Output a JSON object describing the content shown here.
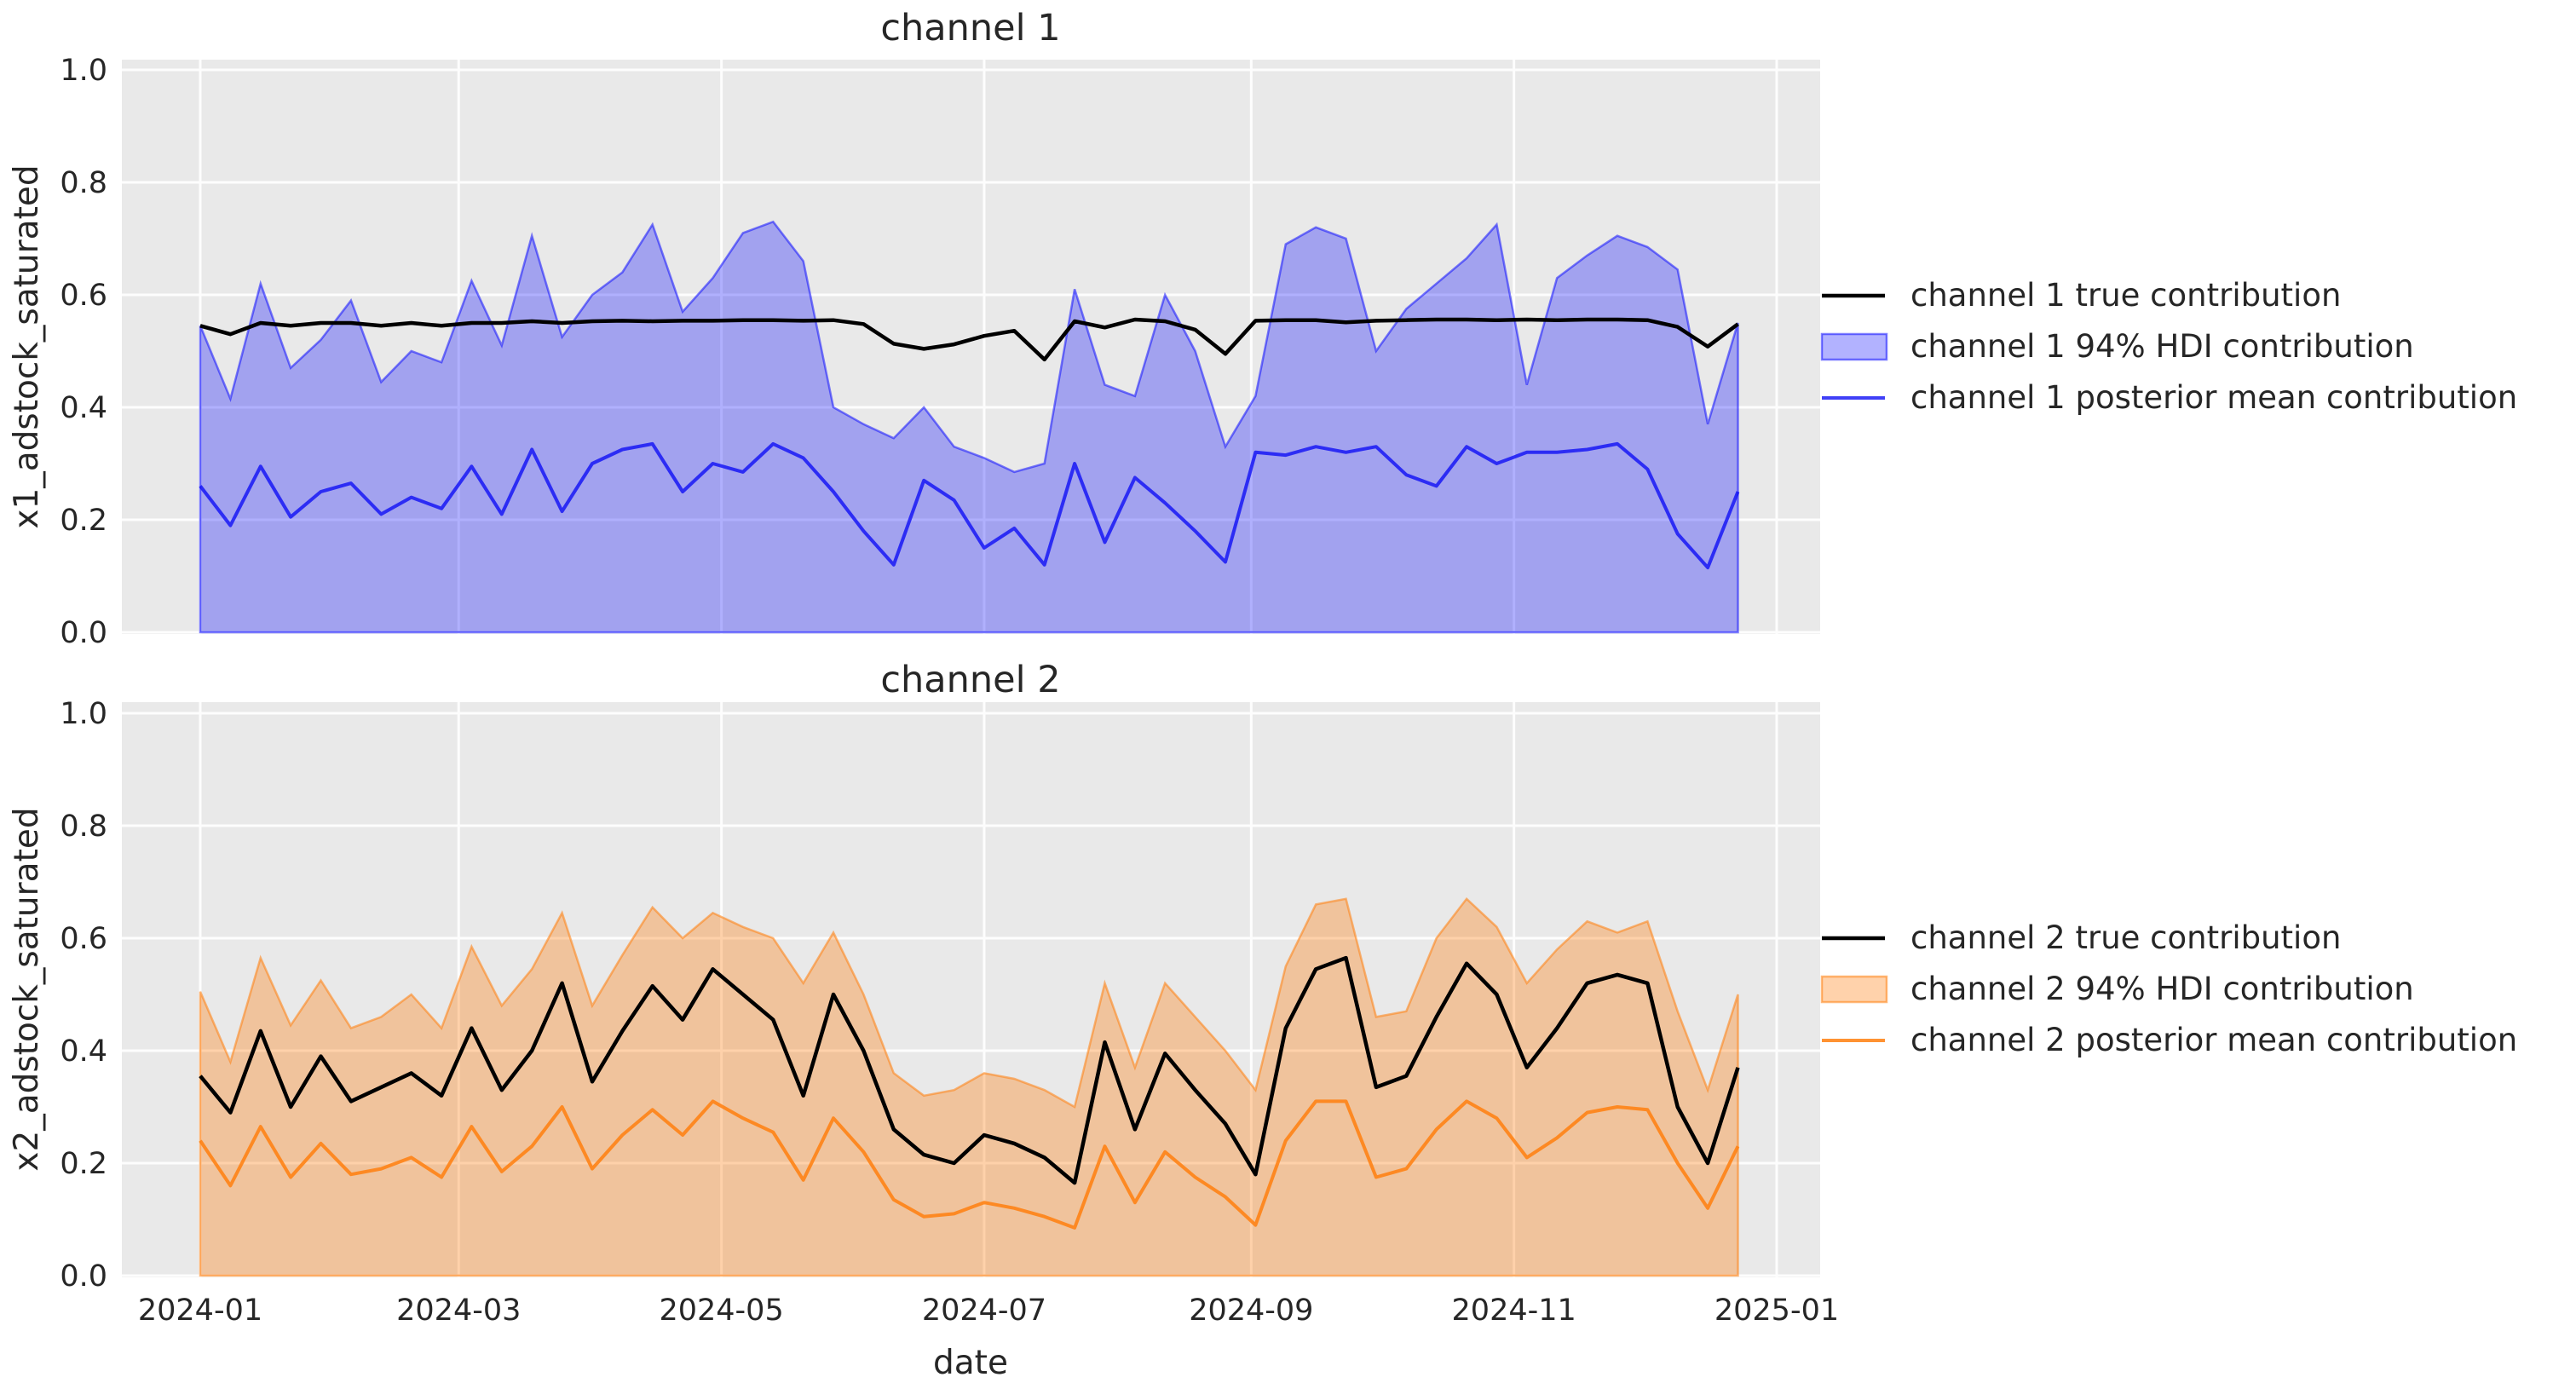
{
  "figure": {
    "xlabel": "date",
    "y_tick_labels": [
      "0.0",
      "0.2",
      "0.4",
      "0.6",
      "0.8",
      "1.0"
    ],
    "x_tick_labels": [
      "2024-01",
      "2024-03",
      "2024-05",
      "2024-07",
      "2024-09",
      "2024-11",
      "2025-01"
    ],
    "background_color": "#ffffff",
    "plot_background_color": "#e9e9e9",
    "grid_color": "#fdfdfd",
    "text_color": "#262626",
    "true_line_color": "#000000",
    "channel1_color": "#0000ff",
    "channel2_color": "#ff7f0e"
  },
  "chart_data": [
    {
      "type": "line",
      "title": "channel 1",
      "ylabel": "x1_adstock_saturated",
      "xlabel": "",
      "ylim": [
        0.0,
        1.0
      ],
      "grid": true,
      "legend_position": "outside-right",
      "x_dates": [
        "2024-01-01",
        "2024-01-08",
        "2024-01-15",
        "2024-01-22",
        "2024-01-29",
        "2024-02-05",
        "2024-02-12",
        "2024-02-19",
        "2024-02-26",
        "2024-03-04",
        "2024-03-11",
        "2024-03-18",
        "2024-03-25",
        "2024-04-01",
        "2024-04-08",
        "2024-04-15",
        "2024-04-22",
        "2024-04-29",
        "2024-05-06",
        "2024-05-13",
        "2024-05-20",
        "2024-05-27",
        "2024-06-03",
        "2024-06-10",
        "2024-06-17",
        "2024-06-24",
        "2024-07-01",
        "2024-07-08",
        "2024-07-15",
        "2024-07-22",
        "2024-07-29",
        "2024-08-05",
        "2024-08-12",
        "2024-08-19",
        "2024-08-26",
        "2024-09-02",
        "2024-09-09",
        "2024-09-16",
        "2024-09-23",
        "2024-09-30",
        "2024-10-07",
        "2024-10-14",
        "2024-10-21",
        "2024-10-28",
        "2024-11-04",
        "2024-11-11",
        "2024-11-18",
        "2024-11-25",
        "2024-12-02",
        "2024-12-09",
        "2024-12-16",
        "2024-12-23"
      ],
      "series": [
        {
          "name": "channel 1 true contribution",
          "kind": "line",
          "color": "#000000",
          "values": [
            0.545,
            0.53,
            0.55,
            0.545,
            0.55,
            0.55,
            0.545,
            0.55,
            0.545,
            0.55,
            0.55,
            0.553,
            0.55,
            0.553,
            0.554,
            0.553,
            0.554,
            0.554,
            0.555,
            0.555,
            0.554,
            0.555,
            0.548,
            0.513,
            0.504,
            0.512,
            0.527,
            0.536,
            0.485,
            0.553,
            0.542,
            0.556,
            0.553,
            0.538,
            0.495,
            0.554,
            0.555,
            0.555,
            0.551,
            0.554,
            0.555,
            0.556,
            0.556,
            0.555,
            0.556,
            0.555,
            0.556,
            0.556,
            0.555,
            0.543,
            0.508,
            0.548
          ]
        },
        {
          "name": "channel 1 94% HDI contribution",
          "kind": "band",
          "color": "#0000ff",
          "hdi_lower": 0.0,
          "hdi_upper": [
            0.545,
            0.415,
            0.62,
            0.47,
            0.52,
            0.59,
            0.445,
            0.5,
            0.48,
            0.625,
            0.51,
            0.705,
            0.525,
            0.6,
            0.64,
            0.725,
            0.57,
            0.63,
            0.71,
            0.73,
            0.66,
            0.4,
            0.37,
            0.345,
            0.4,
            0.33,
            0.31,
            0.285,
            0.3,
            0.61,
            0.44,
            0.42,
            0.6,
            0.5,
            0.33,
            0.42,
            0.69,
            0.72,
            0.7,
            0.5,
            0.575,
            0.62,
            0.665,
            0.725,
            0.44,
            0.63,
            0.67,
            0.705,
            0.685,
            0.645,
            0.37,
            0.55
          ]
        },
        {
          "name": "channel 1 posterior mean contribution",
          "kind": "line",
          "color": "#0a0af5",
          "values": [
            0.26,
            0.19,
            0.295,
            0.205,
            0.25,
            0.265,
            0.21,
            0.24,
            0.22,
            0.295,
            0.21,
            0.325,
            0.215,
            0.3,
            0.325,
            0.335,
            0.25,
            0.3,
            0.285,
            0.335,
            0.31,
            0.25,
            0.18,
            0.12,
            0.27,
            0.235,
            0.15,
            0.185,
            0.12,
            0.3,
            0.16,
            0.275,
            0.23,
            0.18,
            0.125,
            0.32,
            0.315,
            0.33,
            0.32,
            0.33,
            0.28,
            0.26,
            0.33,
            0.3,
            0.32,
            0.32,
            0.325,
            0.335,
            0.29,
            0.175,
            0.115,
            0.25
          ]
        }
      ]
    },
    {
      "type": "line",
      "title": "channel 2",
      "ylabel": "x2_adstock_saturated",
      "xlabel": "date",
      "ylim": [
        0.0,
        1.0
      ],
      "grid": true,
      "legend_position": "outside-right",
      "x_dates": [
        "2024-01-01",
        "2024-01-08",
        "2024-01-15",
        "2024-01-22",
        "2024-01-29",
        "2024-02-05",
        "2024-02-12",
        "2024-02-19",
        "2024-02-26",
        "2024-03-04",
        "2024-03-11",
        "2024-03-18",
        "2024-03-25",
        "2024-04-01",
        "2024-04-08",
        "2024-04-15",
        "2024-04-22",
        "2024-04-29",
        "2024-05-06",
        "2024-05-13",
        "2024-05-20",
        "2024-05-27",
        "2024-06-03",
        "2024-06-10",
        "2024-06-17",
        "2024-06-24",
        "2024-07-01",
        "2024-07-08",
        "2024-07-15",
        "2024-07-22",
        "2024-07-29",
        "2024-08-05",
        "2024-08-12",
        "2024-08-19",
        "2024-08-26",
        "2024-09-02",
        "2024-09-09",
        "2024-09-16",
        "2024-09-23",
        "2024-09-30",
        "2024-10-07",
        "2024-10-14",
        "2024-10-21",
        "2024-10-28",
        "2024-11-04",
        "2024-11-11",
        "2024-11-18",
        "2024-11-25",
        "2024-12-02",
        "2024-12-09",
        "2024-12-16",
        "2024-12-23"
      ],
      "series": [
        {
          "name": "channel 2 true contribution",
          "kind": "line",
          "color": "#000000",
          "values": [
            0.355,
            0.29,
            0.435,
            0.3,
            0.39,
            0.31,
            0.335,
            0.36,
            0.32,
            0.44,
            0.33,
            0.4,
            0.52,
            0.345,
            0.435,
            0.515,
            0.455,
            0.545,
            0.5,
            0.455,
            0.32,
            0.5,
            0.4,
            0.26,
            0.215,
            0.2,
            0.25,
            0.235,
            0.21,
            0.165,
            0.415,
            0.26,
            0.395,
            0.33,
            0.27,
            0.18,
            0.44,
            0.545,
            0.565,
            0.335,
            0.355,
            0.46,
            0.555,
            0.5,
            0.37,
            0.44,
            0.52,
            0.535,
            0.52,
            0.3,
            0.2,
            0.37
          ]
        },
        {
          "name": "channel 2 94% HDI contribution",
          "kind": "band",
          "color": "#ff7f0e",
          "hdi_lower": 0.0,
          "hdi_upper": [
            0.505,
            0.38,
            0.565,
            0.445,
            0.525,
            0.44,
            0.46,
            0.5,
            0.44,
            0.585,
            0.48,
            0.545,
            0.645,
            0.48,
            0.57,
            0.655,
            0.6,
            0.645,
            0.62,
            0.6,
            0.52,
            0.61,
            0.5,
            0.36,
            0.32,
            0.33,
            0.36,
            0.35,
            0.33,
            0.3,
            0.52,
            0.37,
            0.52,
            0.46,
            0.4,
            0.33,
            0.55,
            0.66,
            0.67,
            0.46,
            0.47,
            0.6,
            0.67,
            0.62,
            0.52,
            0.58,
            0.63,
            0.61,
            0.63,
            0.47,
            0.33,
            0.5
          ]
        },
        {
          "name": "channel 2 posterior mean contribution",
          "kind": "line",
          "color": "#ff7f0e",
          "values": [
            0.24,
            0.16,
            0.265,
            0.175,
            0.235,
            0.18,
            0.19,
            0.21,
            0.175,
            0.265,
            0.185,
            0.23,
            0.3,
            0.19,
            0.25,
            0.295,
            0.25,
            0.31,
            0.28,
            0.255,
            0.17,
            0.28,
            0.22,
            0.135,
            0.105,
            0.11,
            0.13,
            0.12,
            0.105,
            0.085,
            0.23,
            0.13,
            0.22,
            0.175,
            0.14,
            0.09,
            0.24,
            0.31,
            0.31,
            0.175,
            0.19,
            0.26,
            0.31,
            0.28,
            0.21,
            0.245,
            0.29,
            0.3,
            0.295,
            0.2,
            0.12,
            0.23
          ]
        }
      ]
    }
  ]
}
